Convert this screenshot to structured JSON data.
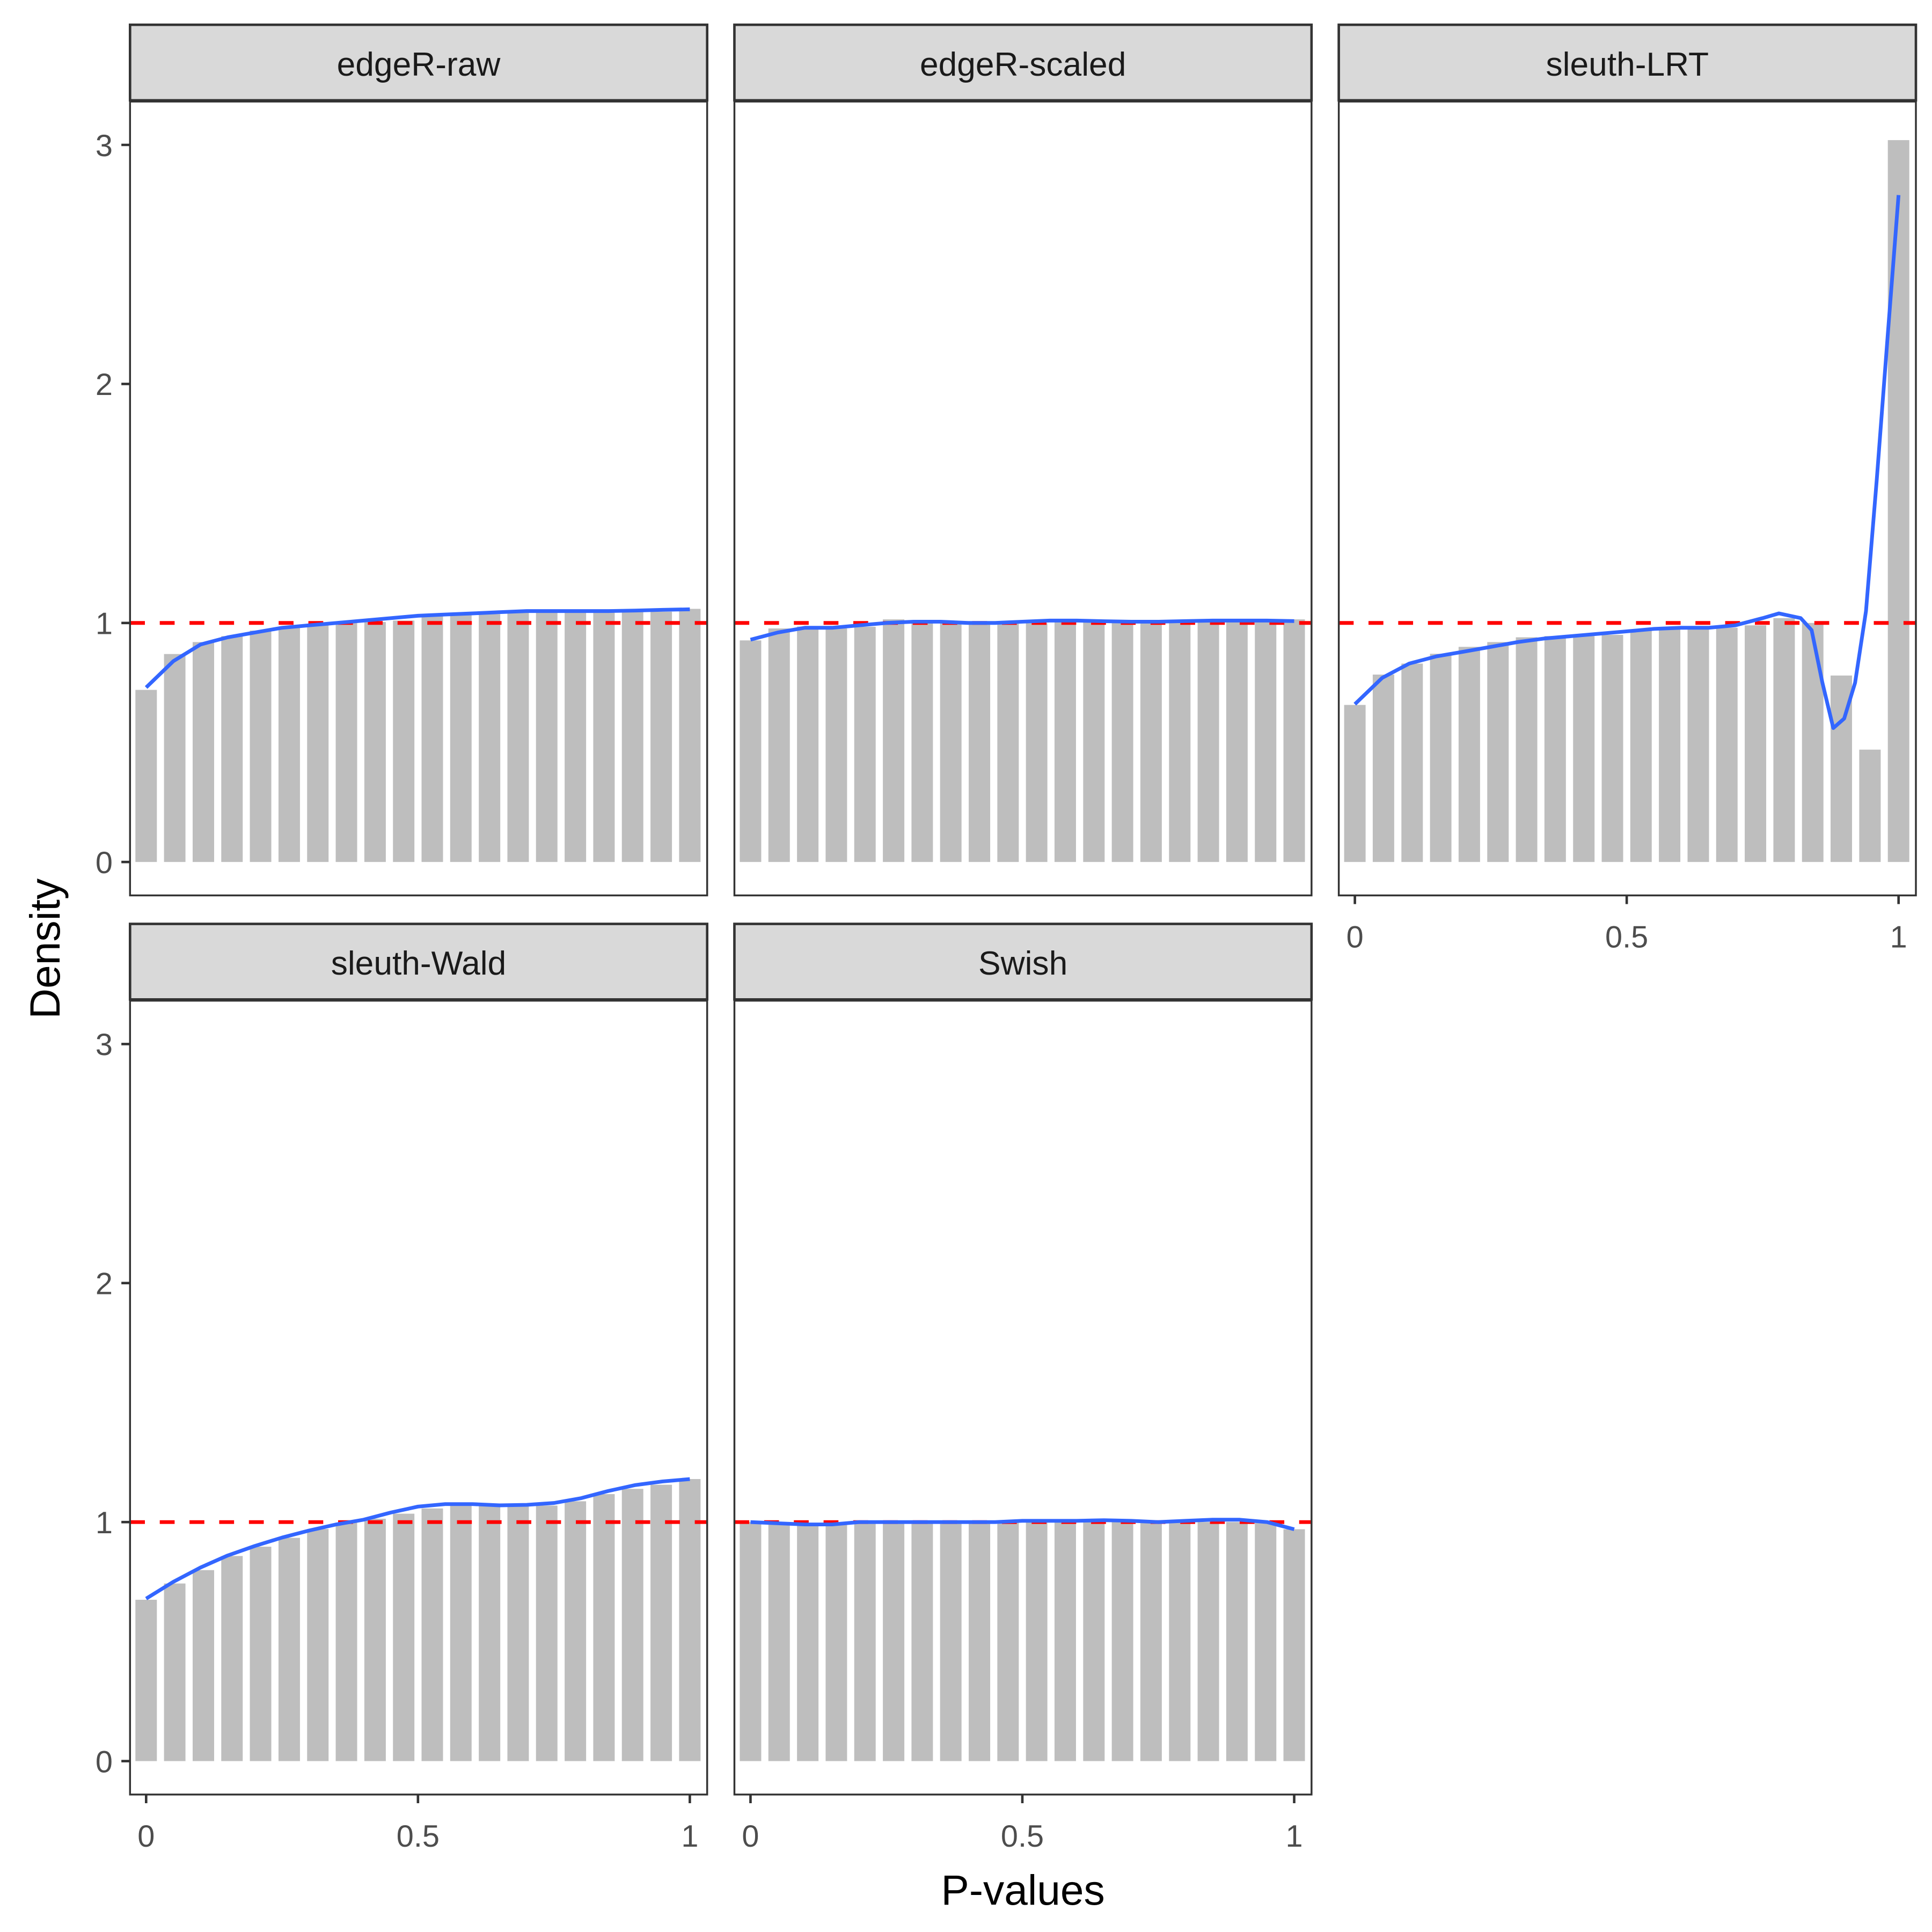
{
  "chart_data": {
    "type": "bar",
    "layout": "facet-wrap 3 columns",
    "xlabel": "P-values",
    "ylabel": "Density",
    "xlim": [
      0,
      1
    ],
    "ylim": [
      0,
      3.1
    ],
    "x_ticks": [
      "0",
      "0.5",
      "1"
    ],
    "x_tick_values": [
      0,
      0.5,
      1
    ],
    "y_ticks": [
      "0",
      "1",
      "2",
      "3"
    ],
    "y_tick_values": [
      0,
      1,
      2,
      3
    ],
    "reference_line": {
      "y": 1,
      "style": "dashed",
      "color": "#ff0000"
    },
    "colors": {
      "bar": "#bebebe",
      "density": "#3366ff",
      "strip_bg": "#d9d9d9",
      "panel_border": "#333333"
    },
    "bin_centers": [
      0,
      0.0526,
      0.1053,
      0.1579,
      0.2105,
      0.2632,
      0.3158,
      0.3684,
      0.4211,
      0.4737,
      0.5263,
      0.5789,
      0.6316,
      0.6842,
      0.7368,
      0.7895,
      0.8421,
      0.8947,
      0.9474,
      1
    ],
    "panels": [
      {
        "name": "edgeR-raw",
        "histogram": [
          0.72,
          0.87,
          0.92,
          0.945,
          0.968,
          0.98,
          0.99,
          1.0,
          1.004,
          1.01,
          1.028,
          1.034,
          1.037,
          1.044,
          1.047,
          1.047,
          1.047,
          1.047,
          1.047,
          1.059
        ],
        "density_x": [
          0,
          0.05,
          0.1,
          0.15,
          0.2,
          0.25,
          0.3,
          0.35,
          0.4,
          0.45,
          0.5,
          0.55,
          0.6,
          0.65,
          0.7,
          0.75,
          0.8,
          0.85,
          0.9,
          0.95,
          1
        ],
        "density_y": [
          0.73,
          0.84,
          0.91,
          0.94,
          0.96,
          0.98,
          0.99,
          1.0,
          1.01,
          1.02,
          1.03,
          1.035,
          1.04,
          1.045,
          1.05,
          1.05,
          1.05,
          1.05,
          1.052,
          1.055,
          1.057
        ]
      },
      {
        "name": "edgeR-scaled",
        "histogram": [
          0.927,
          0.977,
          0.985,
          0.977,
          0.984,
          1.015,
          1.003,
          0.999,
          0.999,
          0.999,
          0.999,
          1.004,
          1.01,
          1.003,
          1.003,
          1.003,
          1.01,
          1.01,
          1.01,
          1.015
        ],
        "density_x": [
          0,
          0.05,
          0.1,
          0.15,
          0.2,
          0.25,
          0.3,
          0.35,
          0.4,
          0.45,
          0.5,
          0.55,
          0.6,
          0.65,
          0.7,
          0.75,
          0.8,
          0.85,
          0.9,
          0.95,
          1
        ],
        "density_y": [
          0.93,
          0.96,
          0.98,
          0.98,
          0.99,
          1.0,
          1.005,
          1.005,
          1.0,
          1.0,
          1.005,
          1.01,
          1.01,
          1.007,
          1.005,
          1.005,
          1.008,
          1.01,
          1.01,
          1.01,
          1.008
        ]
      },
      {
        "name": "sleuth-LRT",
        "histogram": [
          0.657,
          0.784,
          0.83,
          0.871,
          0.9,
          0.92,
          0.94,
          0.945,
          0.945,
          0.95,
          0.97,
          0.98,
          0.98,
          0.98,
          0.99,
          1.02,
          1.0,
          0.78,
          0.47,
          3.02
        ],
        "density_x": [
          0,
          0.05,
          0.1,
          0.15,
          0.2,
          0.25,
          0.3,
          0.35,
          0.4,
          0.45,
          0.5,
          0.55,
          0.6,
          0.65,
          0.7,
          0.75,
          0.78,
          0.82,
          0.84,
          0.86,
          0.88,
          0.9,
          0.92,
          0.94,
          0.96,
          0.98,
          1
        ],
        "density_y": [
          0.66,
          0.77,
          0.83,
          0.86,
          0.88,
          0.9,
          0.92,
          0.935,
          0.945,
          0.955,
          0.965,
          0.975,
          0.98,
          0.98,
          0.99,
          1.02,
          1.04,
          1.02,
          0.97,
          0.75,
          0.56,
          0.6,
          0.75,
          1.05,
          1.6,
          2.2,
          2.79
        ]
      },
      {
        "name": "sleuth-Wald",
        "histogram": [
          0.675,
          0.743,
          0.799,
          0.858,
          0.897,
          0.934,
          0.971,
          0.997,
          1.014,
          1.035,
          1.057,
          1.069,
          1.069,
          1.066,
          1.069,
          1.087,
          1.117,
          1.139,
          1.156,
          1.18
        ],
        "density_x": [
          0,
          0.05,
          0.1,
          0.15,
          0.2,
          0.25,
          0.3,
          0.35,
          0.4,
          0.45,
          0.5,
          0.55,
          0.6,
          0.65,
          0.7,
          0.75,
          0.8,
          0.85,
          0.9,
          0.95,
          1
        ],
        "density_y": [
          0.68,
          0.75,
          0.81,
          0.86,
          0.9,
          0.935,
          0.965,
          0.99,
          1.01,
          1.04,
          1.065,
          1.075,
          1.075,
          1.07,
          1.072,
          1.08,
          1.1,
          1.13,
          1.155,
          1.17,
          1.18
        ]
      },
      {
        "name": "Swish",
        "histogram": [
          1.0,
          1.0,
          0.995,
          0.995,
          1.0,
          1.0,
          1.0,
          1.0,
          1.0,
          1.0,
          1.0,
          1.0,
          1.0,
          1.0,
          1.0,
          1.0,
          1.0,
          1.0,
          1.0,
          0.97
        ],
        "density_x": [
          0,
          0.05,
          0.1,
          0.15,
          0.2,
          0.25,
          0.3,
          0.35,
          0.4,
          0.45,
          0.5,
          0.55,
          0.6,
          0.65,
          0.7,
          0.75,
          0.8,
          0.85,
          0.9,
          0.95,
          1
        ],
        "density_y": [
          1.0,
          0.995,
          0.99,
          0.99,
          1.0,
          1.0,
          1.0,
          1.0,
          1.0,
          1.0,
          1.005,
          1.005,
          1.005,
          1.008,
          1.005,
          1.0,
          1.005,
          1.01,
          1.01,
          1.0,
          0.97
        ]
      }
    ]
  }
}
